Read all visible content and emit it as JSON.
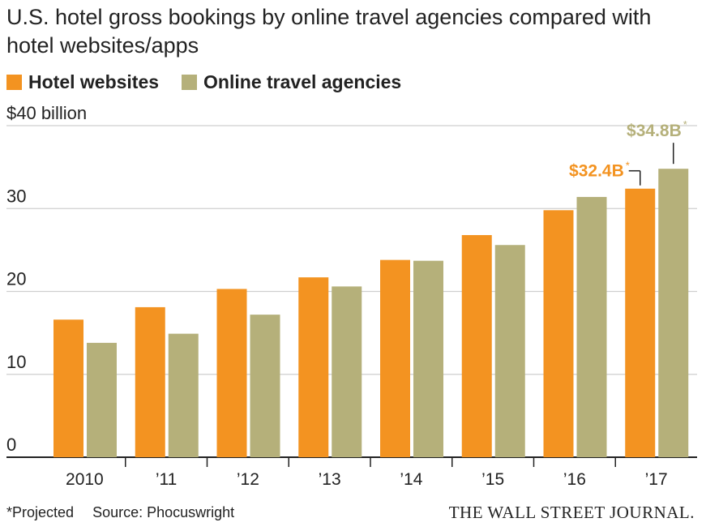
{
  "header": {
    "title": "U.S. hotel gross bookings by online travel agencies compared with hotel websites/apps"
  },
  "legend": {
    "items": [
      {
        "label": "Hotel websites",
        "color": "#f39321"
      },
      {
        "label": "Online travel agencies",
        "color": "#b5b07a"
      }
    ]
  },
  "chart_data": {
    "type": "bar",
    "categories": [
      "2010",
      "’11",
      "’12",
      "’13",
      "’14",
      "’15",
      "’16",
      "’17"
    ],
    "series": [
      {
        "name": "Hotel websites",
        "color": "#f39321",
        "values": [
          16.6,
          18.1,
          20.3,
          21.7,
          23.8,
          26.8,
          29.8,
          32.4
        ]
      },
      {
        "name": "Online travel agencies",
        "color": "#b5b07a",
        "values": [
          13.8,
          14.9,
          17.2,
          20.6,
          23.7,
          25.6,
          31.4,
          34.8
        ]
      }
    ],
    "ylim": [
      0,
      40
    ],
    "yticks": [
      0,
      10,
      20,
      30,
      40
    ],
    "ytick_labels": [
      "0",
      "10",
      "20",
      "30",
      "$40 billion"
    ],
    "grid": true,
    "annotations": [
      {
        "series": 0,
        "index": 7,
        "text": "$32.4B",
        "marker": "*",
        "color": "#f39321"
      },
      {
        "series": 1,
        "index": 7,
        "text": "$34.8B",
        "marker": "*",
        "color": "#b5b07a"
      }
    ]
  },
  "footer": {
    "note": "*Projected",
    "source": "Source: Phocuswright",
    "brand": "THE WALL STREET JOURNAL."
  }
}
